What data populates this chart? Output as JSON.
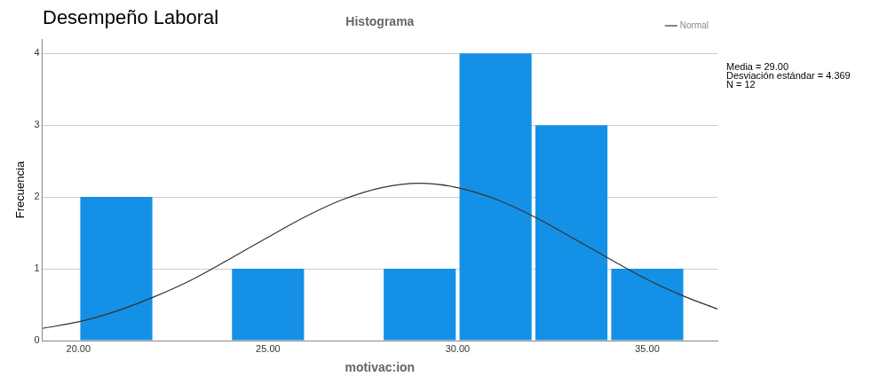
{
  "chart_data": {
    "type": "histogram",
    "title": "Desempeño Laboral",
    "subtitle": "Histograma",
    "xlabel": "motivac:ion",
    "ylabel": "Frecuencia",
    "series": [
      {
        "color": "#1490e6",
        "bins": [
          20,
          22,
          24,
          26,
          28,
          30,
          32,
          34,
          36
        ],
        "values": [
          2,
          0,
          1,
          0,
          1,
          4,
          3,
          1
        ]
      },
      {
        "type": "line",
        "name": "Normal",
        "color": "#333333",
        "x": [
          19.05,
          20,
          21,
          22,
          23,
          24,
          25,
          26,
          27,
          28,
          29,
          30,
          31,
          32,
          33,
          34,
          35,
          36,
          36.85
        ],
        "values": [
          0.17,
          0.26,
          0.41,
          0.61,
          0.85,
          1.14,
          1.44,
          1.73,
          1.97,
          2.13,
          2.19,
          2.13,
          1.97,
          1.73,
          1.44,
          1.14,
          0.85,
          0.61,
          0.44
        ]
      }
    ],
    "xlim": [
      19.05,
      36.85
    ],
    "xticks": [
      {
        "value": 20,
        "label": "20.00"
      },
      {
        "value": 25,
        "label": "25.00"
      },
      {
        "value": 30,
        "label": "30.00"
      },
      {
        "value": 35,
        "label": "35.00"
      }
    ],
    "ylim": [
      0,
      4.2
    ],
    "yticks": [
      0,
      1,
      2,
      3,
      4
    ],
    "grid": "y",
    "legend": "top right",
    "marker": "none",
    "line_style": "solid",
    "annotations": [
      "Media = 29.00",
      "Desviación estándar = 4.369",
      "N = 12"
    ]
  }
}
